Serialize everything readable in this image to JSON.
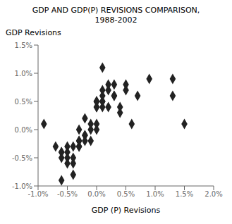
{
  "chart_data": {
    "type": "scatter",
    "title": "GDP AND GDP(P) REVISIONS COMPARISON,",
    "subtitle": "1988-2002",
    "xlabel": "GDP (P) Revisions",
    "ylabel": "GDP Revisions",
    "x": [
      -0.009,
      -0.007,
      -0.006,
      -0.006,
      -0.006,
      -0.006,
      -0.005,
      -0.005,
      -0.005,
      -0.005,
      -0.004,
      -0.004,
      -0.004,
      -0.004,
      -0.003,
      -0.003,
      -0.003,
      -0.003,
      -0.003,
      -0.002,
      -0.002,
      -0.002,
      -0.002,
      -0.001,
      -0.001,
      -0.001,
      0.0,
      0.0,
      0.0,
      0.0,
      0.0,
      0.0,
      0.0,
      0.001,
      0.001,
      0.001,
      0.001,
      0.001,
      0.001,
      0.002,
      0.002,
      0.002,
      0.003,
      0.003,
      0.003,
      0.004,
      0.004,
      0.005,
      0.005,
      0.006,
      0.007,
      0.009,
      0.013,
      0.013,
      0.015
    ],
    "values": [
      0.001,
      -0.003,
      -0.004,
      -0.004,
      -0.005,
      -0.009,
      -0.003,
      -0.004,
      -0.005,
      -0.006,
      -0.003,
      -0.005,
      -0.006,
      -0.008,
      0.0,
      -0.002,
      -0.002,
      -0.003,
      -0.003,
      0.002,
      -0.001,
      -0.001,
      -0.002,
      -0.002,
      0.0,
      0.001,
      0.004,
      0.004,
      0.005,
      0.005,
      0.005,
      0.001,
      0.0,
      0.004,
      0.005,
      0.005,
      0.006,
      0.007,
      0.011,
      0.004,
      0.007,
      0.008,
      0.006,
      0.006,
      0.008,
      0.003,
      0.004,
      0.007,
      0.008,
      0.001,
      0.006,
      0.009,
      0.006,
      0.009,
      0.001
    ],
    "color": "#222222",
    "marker": "diamond",
    "xlim": [
      -0.01,
      0.02
    ],
    "ylim": [
      -0.01,
      0.015
    ],
    "xticks": [
      {
        "value": -0.01,
        "label": "-1.0%"
      },
      {
        "value": -0.005,
        "label": "-0.5%"
      },
      {
        "value": 0.0,
        "label": "0.0%"
      },
      {
        "value": 0.005,
        "label": "0.5%"
      },
      {
        "value": 0.01,
        "label": "1.0%"
      },
      {
        "value": 0.015,
        "label": "1.5%"
      },
      {
        "value": 0.02,
        "label": "2.0%"
      }
    ],
    "yticks": [
      {
        "value": -0.01,
        "label": "-1.0%"
      },
      {
        "value": -0.005,
        "label": "-0.5%"
      },
      {
        "value": 0.0,
        "label": "0.0%"
      },
      {
        "value": 0.005,
        "label": "0.5%"
      },
      {
        "value": 0.01,
        "label": "1.0%"
      },
      {
        "value": 0.015,
        "label": "1.5%"
      }
    ],
    "grid": false
  }
}
